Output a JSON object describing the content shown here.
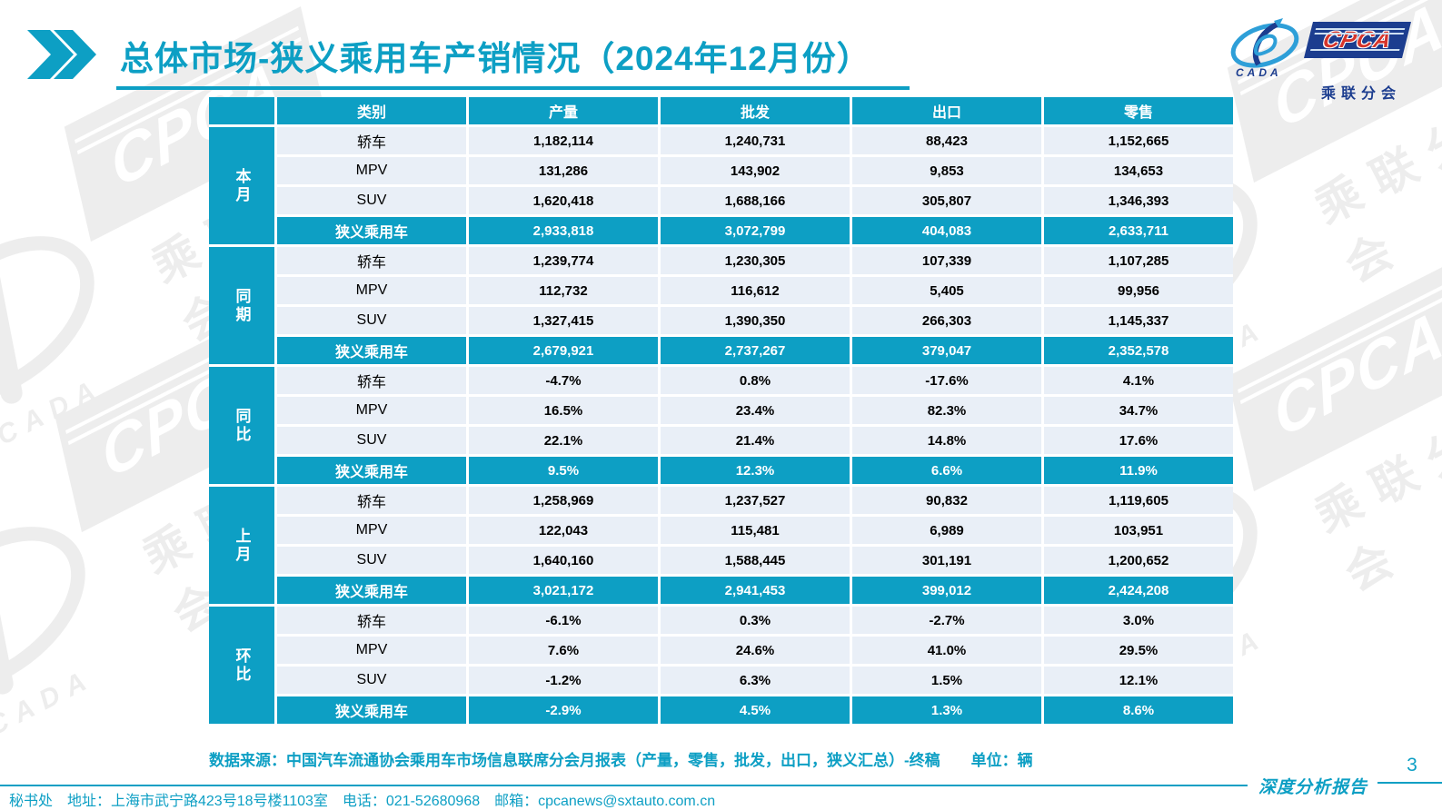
{
  "title": {
    "text": "总体市场-狭义乘用车产销情况（2024年12月份）"
  },
  "logo": {
    "cpca": "CPCA",
    "subtitle": "乘联分会",
    "cada": "CADA",
    "navy": "#1c3d8f",
    "red": "#d6352b",
    "light_blue": "#2e9fd8"
  },
  "theme": {
    "accent_teal": "#0d9fc4",
    "row_bg": "#e9eff7",
    "watermark_gray": "#ededed"
  },
  "chart_data": {
    "type": "table",
    "title": "总体市场-狭义乘用车产销情况（2024年12月份）",
    "columns": [
      "类别",
      "产量",
      "批发",
      "出口",
      "零售"
    ],
    "row_groups": [
      "本月",
      "同期",
      "同比",
      "上月",
      "环比"
    ]
  },
  "table": {
    "headers": [
      "类别",
      "产量",
      "批发",
      "出口",
      "零售"
    ],
    "groups": [
      {
        "label": "本月",
        "rows": [
          {
            "category": "轿车",
            "values": [
              "1,182,114",
              "1,240,731",
              "88,423",
              "1,152,665"
            ],
            "summary": false
          },
          {
            "category": "MPV",
            "values": [
              "131,286",
              "143,902",
              "9,853",
              "134,653"
            ],
            "summary": false
          },
          {
            "category": "SUV",
            "values": [
              "1,620,418",
              "1,688,166",
              "305,807",
              "1,346,393"
            ],
            "summary": false
          },
          {
            "category": "狭义乘用车",
            "values": [
              "2,933,818",
              "3,072,799",
              "404,083",
              "2,633,711"
            ],
            "summary": true
          }
        ]
      },
      {
        "label": "同期",
        "rows": [
          {
            "category": "轿车",
            "values": [
              "1,239,774",
              "1,230,305",
              "107,339",
              "1,107,285"
            ],
            "summary": false
          },
          {
            "category": "MPV",
            "values": [
              "112,732",
              "116,612",
              "5,405",
              "99,956"
            ],
            "summary": false
          },
          {
            "category": "SUV",
            "values": [
              "1,327,415",
              "1,390,350",
              "266,303",
              "1,145,337"
            ],
            "summary": false
          },
          {
            "category": "狭义乘用车",
            "values": [
              "2,679,921",
              "2,737,267",
              "379,047",
              "2,352,578"
            ],
            "summary": true
          }
        ]
      },
      {
        "label": "同比",
        "rows": [
          {
            "category": "轿车",
            "values": [
              "-4.7%",
              "0.8%",
              "-17.6%",
              "4.1%"
            ],
            "summary": false
          },
          {
            "category": "MPV",
            "values": [
              "16.5%",
              "23.4%",
              "82.3%",
              "34.7%"
            ],
            "summary": false
          },
          {
            "category": "SUV",
            "values": [
              "22.1%",
              "21.4%",
              "14.8%",
              "17.6%"
            ],
            "summary": false
          },
          {
            "category": "狭义乘用车",
            "values": [
              "9.5%",
              "12.3%",
              "6.6%",
              "11.9%"
            ],
            "summary": true
          }
        ]
      },
      {
        "label": "上月",
        "rows": [
          {
            "category": "轿车",
            "values": [
              "1,258,969",
              "1,237,527",
              "90,832",
              "1,119,605"
            ],
            "summary": false
          },
          {
            "category": "MPV",
            "values": [
              "122,043",
              "115,481",
              "6,989",
              "103,951"
            ],
            "summary": false
          },
          {
            "category": "SUV",
            "values": [
              "1,640,160",
              "1,588,445",
              "301,191",
              "1,200,652"
            ],
            "summary": false
          },
          {
            "category": "狭义乘用车",
            "values": [
              "3,021,172",
              "2,941,453",
              "399,012",
              "2,424,208"
            ],
            "summary": true
          }
        ]
      },
      {
        "label": "环比",
        "rows": [
          {
            "category": "轿车",
            "values": [
              "-6.1%",
              "0.3%",
              "-2.7%",
              "3.0%"
            ],
            "summary": false
          },
          {
            "category": "MPV",
            "values": [
              "7.6%",
              "24.6%",
              "41.0%",
              "29.5%"
            ],
            "summary": false
          },
          {
            "category": "SUV",
            "values": [
              "-1.2%",
              "6.3%",
              "1.5%",
              "12.1%"
            ],
            "summary": false
          },
          {
            "category": "狭义乘用车",
            "values": [
              "-2.9%",
              "4.5%",
              "1.3%",
              "8.6%"
            ],
            "summary": true
          }
        ]
      }
    ]
  },
  "source_note": "数据来源：中国汽车流通协会乘用车市场信息联席分会月报表（产量，零售，批发，出口，狭义汇总）-终稿　　单位：辆",
  "footer": {
    "secretariat_line": "秘书处　地址：上海市武宁路423号18号楼1103室　电话：021-52680968　邮箱：cpcanews@sxtauto.com.cn",
    "report_label": "深度分析报告",
    "page_number": "3"
  }
}
